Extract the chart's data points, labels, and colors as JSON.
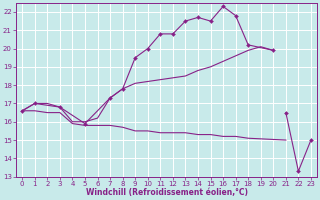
{
  "background_color": "#c8eaea",
  "grid_color": "#ffffff",
  "line_color": "#882288",
  "xlabel": "Windchill (Refroidissement éolien,°C)",
  "xlim": [
    -0.5,
    23.5
  ],
  "ylim": [
    13,
    22.5
  ],
  "yticks": [
    13,
    14,
    15,
    16,
    17,
    18,
    19,
    20,
    21,
    22
  ],
  "xticks": [
    0,
    1,
    2,
    3,
    4,
    5,
    6,
    7,
    8,
    9,
    10,
    11,
    12,
    13,
    14,
    15,
    16,
    17,
    18,
    19,
    20,
    21,
    22,
    23
  ],
  "series": [
    {
      "x": [
        0,
        1,
        2,
        3,
        4,
        5,
        6,
        7,
        8,
        9,
        10,
        11,
        12,
        13,
        14,
        15,
        16,
        17,
        18,
        19,
        20
      ],
      "y": [
        16.6,
        17.0,
        17.0,
        16.8,
        16.0,
        16.0,
        16.2,
        17.3,
        17.8,
        18.1,
        18.2,
        18.3,
        18.4,
        18.5,
        18.8,
        19.0,
        19.3,
        19.6,
        19.9,
        20.1,
        19.9
      ],
      "marker": null,
      "linewidth": 0.8
    },
    {
      "x": [
        0,
        1,
        2,
        3,
        4,
        5,
        6,
        7,
        8,
        9,
        10,
        11,
        12,
        13,
        14,
        15,
        16,
        17,
        18,
        21
      ],
      "y": [
        16.6,
        16.6,
        16.5,
        16.5,
        15.9,
        15.8,
        15.8,
        15.8,
        15.7,
        15.5,
        15.5,
        15.4,
        15.4,
        15.4,
        15.3,
        15.3,
        15.2,
        15.2,
        15.1,
        15.0
      ],
      "marker": null,
      "linewidth": 0.8
    },
    {
      "segments": [
        {
          "x": [
            0,
            1,
            3,
            5,
            7,
            8,
            9,
            10,
            11,
            12,
            13,
            14,
            15,
            16,
            17,
            18,
            20
          ],
          "y": [
            16.6,
            17.0,
            16.8,
            15.9,
            17.3,
            17.8,
            19.5,
            20.0,
            20.8,
            20.8,
            21.5,
            21.7,
            21.5,
            22.3,
            21.8,
            20.2,
            19.9
          ]
        },
        {
          "x": [
            21,
            22,
            23
          ],
          "y": [
            16.5,
            13.3,
            15.0
          ]
        }
      ],
      "marker": "D",
      "marker_size": 2.0,
      "linewidth": 0.8
    }
  ],
  "xlabel_fontsize": 5.5,
  "tick_fontsize": 5.0,
  "label_color": "#882288"
}
